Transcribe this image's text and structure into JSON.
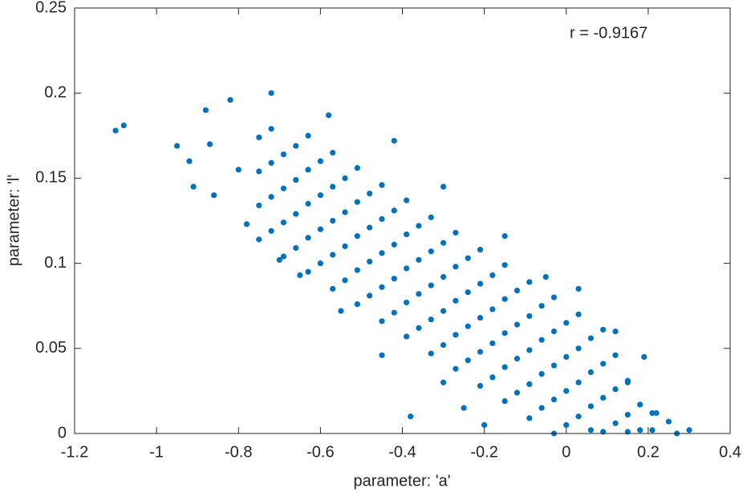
{
  "chart_data": {
    "type": "scatter",
    "x_label": "parameter: 'a'",
    "y_label": "parameter: 'l'",
    "annotation": "r = -0.9167",
    "xlim": [
      -1.2,
      0.4
    ],
    "xticks": [
      -1.2,
      -1,
      -0.8,
      -0.6,
      -0.4,
      -0.2,
      0,
      0.2,
      0.4
    ],
    "ylim": [
      0,
      0.25
    ],
    "yticks": [
      0,
      0.05,
      0.1,
      0.15,
      0.2,
      0.25
    ],
    "grid": false,
    "series": [
      {
        "color": "#0072bd",
        "x": [
          -0.75,
          -0.75,
          -0.75,
          -0.75,
          -0.72,
          -0.72,
          -0.72,
          -0.72,
          -0.69,
          -0.69,
          -0.69,
          -0.69,
          -0.66,
          -0.66,
          -0.66,
          -0.66,
          -0.63,
          -0.63,
          -0.63,
          -0.63,
          -0.63,
          -0.6,
          -0.6,
          -0.6,
          -0.6,
          -0.57,
          -0.57,
          -0.57,
          -0.57,
          -0.57,
          -0.54,
          -0.54,
          -0.54,
          -0.54,
          -0.51,
          -0.51,
          -0.51,
          -0.51,
          -0.51,
          -0.48,
          -0.48,
          -0.48,
          -0.48,
          -0.45,
          -0.45,
          -0.45,
          -0.45,
          -0.45,
          -0.42,
          -0.42,
          -0.42,
          -0.42,
          -0.39,
          -0.39,
          -0.39,
          -0.39,
          -0.39,
          -0.36,
          -0.36,
          -0.36,
          -0.36,
          -0.33,
          -0.33,
          -0.33,
          -0.33,
          -0.33,
          -0.3,
          -0.3,
          -0.3,
          -0.3,
          -0.27,
          -0.27,
          -0.27,
          -0.27,
          -0.27,
          -0.24,
          -0.24,
          -0.24,
          -0.24,
          -0.21,
          -0.21,
          -0.21,
          -0.21,
          -0.21,
          -0.18,
          -0.18,
          -0.18,
          -0.18,
          -0.15,
          -0.15,
          -0.15,
          -0.15,
          -0.15,
          -0.12,
          -0.12,
          -0.12,
          -0.12,
          -0.09,
          -0.09,
          -0.09,
          -0.09,
          -0.09,
          -0.06,
          -0.06,
          -0.06,
          -0.06,
          -0.03,
          -0.03,
          -0.03,
          -0.03,
          -0.03,
          0,
          0,
          0,
          0,
          0.03,
          0.03,
          0.03,
          0.03,
          0.06,
          0.06,
          0.06,
          0.06,
          0.09,
          0.09,
          0.09,
          0.09,
          0.12,
          0.12,
          0.12,
          0.15,
          0.15,
          0.15,
          0.18,
          0.18,
          0.21,
          0.21,
          -1.1,
          -1.08,
          -0.95,
          -0.92,
          -0.91,
          -0.88,
          -0.87,
          -0.86,
          -0.82,
          -0.8,
          -0.78,
          -0.72,
          -0.7,
          -0.65,
          -0.58,
          -0.55,
          -0.45,
          -0.42,
          -0.3,
          -0.25,
          -0.2,
          -0.3,
          -0.15,
          -0.05,
          0.03,
          0.12,
          0.15,
          0.22,
          0.25,
          0.3,
          0.27,
          -0.38,
          0.19
        ],
        "y": [
          0.114,
          0.134,
          0.154,
          0.174,
          0.119,
          0.139,
          0.159,
          0.179,
          0.104,
          0.124,
          0.144,
          0.164,
          0.109,
          0.129,
          0.149,
          0.169,
          0.095,
          0.115,
          0.135,
          0.155,
          0.175,
          0.1,
          0.12,
          0.14,
          0.16,
          0.085,
          0.105,
          0.125,
          0.145,
          0.165,
          0.09,
          0.11,
          0.13,
          0.15,
          0.076,
          0.096,
          0.116,
          0.136,
          0.156,
          0.081,
          0.101,
          0.121,
          0.141,
          0.066,
          0.086,
          0.106,
          0.126,
          0.146,
          0.071,
          0.091,
          0.111,
          0.131,
          0.057,
          0.077,
          0.097,
          0.117,
          0.137,
          0.062,
          0.082,
          0.102,
          0.122,
          0.047,
          0.067,
          0.087,
          0.107,
          0.127,
          0.052,
          0.072,
          0.092,
          0.112,
          0.038,
          0.058,
          0.078,
          0.098,
          0.118,
          0.043,
          0.063,
          0.083,
          0.103,
          0.028,
          0.048,
          0.068,
          0.088,
          0.108,
          0.033,
          0.053,
          0.073,
          0.093,
          0.019,
          0.039,
          0.059,
          0.079,
          0.099,
          0.024,
          0.044,
          0.064,
          0.084,
          0.009,
          0.029,
          0.049,
          0.069,
          0.089,
          0.015,
          0.035,
          0.055,
          0.075,
          0,
          0.02,
          0.04,
          0.06,
          0.08,
          0.005,
          0.025,
          0.045,
          0.065,
          0.01,
          0.03,
          0.05,
          0.07,
          0.002,
          0.016,
          0.036,
          0.056,
          0.001,
          0.021,
          0.041,
          0.061,
          0.006,
          0.026,
          0.046,
          0.001,
          0.011,
          0.031,
          0.002,
          0.017,
          0.002,
          0.012,
          0.178,
          0.181,
          0.169,
          0.16,
          0.145,
          0.19,
          0.17,
          0.14,
          0.196,
          0.155,
          0.123,
          0.2,
          0.102,
          0.093,
          0.187,
          0.072,
          0.046,
          0.172,
          0.03,
          0.015,
          0.005,
          0.145,
          0.116,
          0.092,
          0.085,
          0.06,
          0.03,
          0.012,
          0.007,
          0.002,
          0,
          0.01,
          0.045
        ]
      }
    ]
  }
}
